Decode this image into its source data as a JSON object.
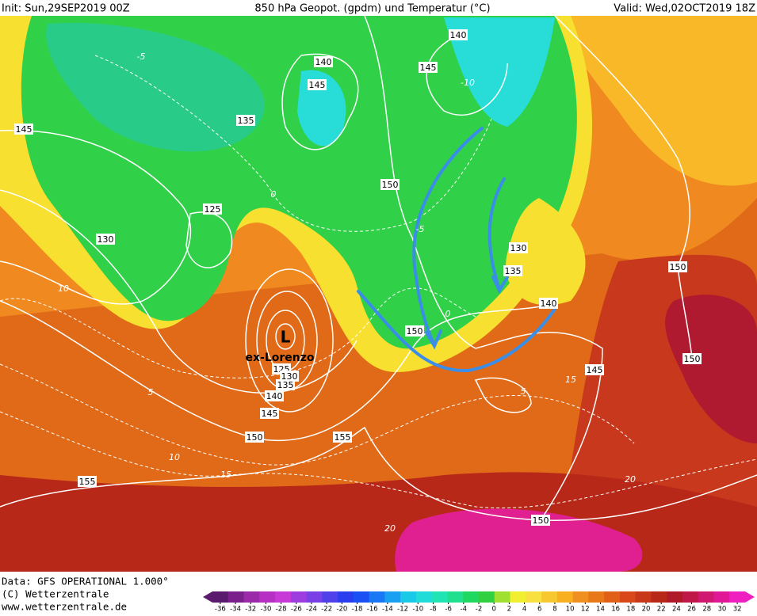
{
  "header": {
    "init": "Init: Sun,29SEP2019 00Z",
    "title": "850 hPa Geopot. (gpdm) und Temperatur (°C)",
    "valid": "Valid: Wed,02OCT2019 18Z"
  },
  "map": {
    "geopotential_labels": [
      "145",
      "140",
      "140",
      "145",
      "145",
      "135",
      "150",
      "125",
      "130",
      "130",
      "135",
      "140",
      "150",
      "150",
      "150",
      "145",
      "125",
      "130",
      "135",
      "140",
      "145",
      "150",
      "155",
      "155",
      "150"
    ],
    "temperature_labels": [
      "-5",
      "-10",
      "0",
      "-5",
      "0",
      "5",
      "10",
      "10",
      "15",
      "15",
      "20",
      "20",
      "5"
    ],
    "low_symbol": "L",
    "low_name": "ex-Lorenzo"
  },
  "footer": {
    "data": "Data: GFS OPERATIONAL 1.000°",
    "copyright": "(C) Wetterzentrale",
    "url": "www.wetterzentrale.de"
  },
  "colorbar": {
    "ticks": [
      -36,
      -34,
      -32,
      -30,
      -28,
      -26,
      -24,
      -22,
      -20,
      -18,
      -16,
      -14,
      -12,
      -10,
      -8,
      -6,
      -4,
      -2,
      0,
      2,
      4,
      6,
      8,
      10,
      12,
      14,
      16,
      18,
      20,
      22,
      24,
      26,
      28,
      30,
      32
    ],
    "colors": [
      "#5a1a6e",
      "#7a1f8c",
      "#9a2aa8",
      "#b630c4",
      "#c83ad8",
      "#9d3de0",
      "#7a40e6",
      "#5040ea",
      "#2a3ef0",
      "#1a50f4",
      "#1a78f4",
      "#1aa0f0",
      "#1ac8e8",
      "#20dcd8",
      "#20e4b4",
      "#20e090",
      "#20d860",
      "#30d040",
      "#a0e030",
      "#f0f030",
      "#f8e040",
      "#f8c830",
      "#f8b020",
      "#f09020",
      "#e87818",
      "#e06018",
      "#d84818",
      "#c83818",
      "#b82818",
      "#b01a28",
      "#c01848",
      "#d01870",
      "#e01898",
      "#f020c0"
    ]
  }
}
